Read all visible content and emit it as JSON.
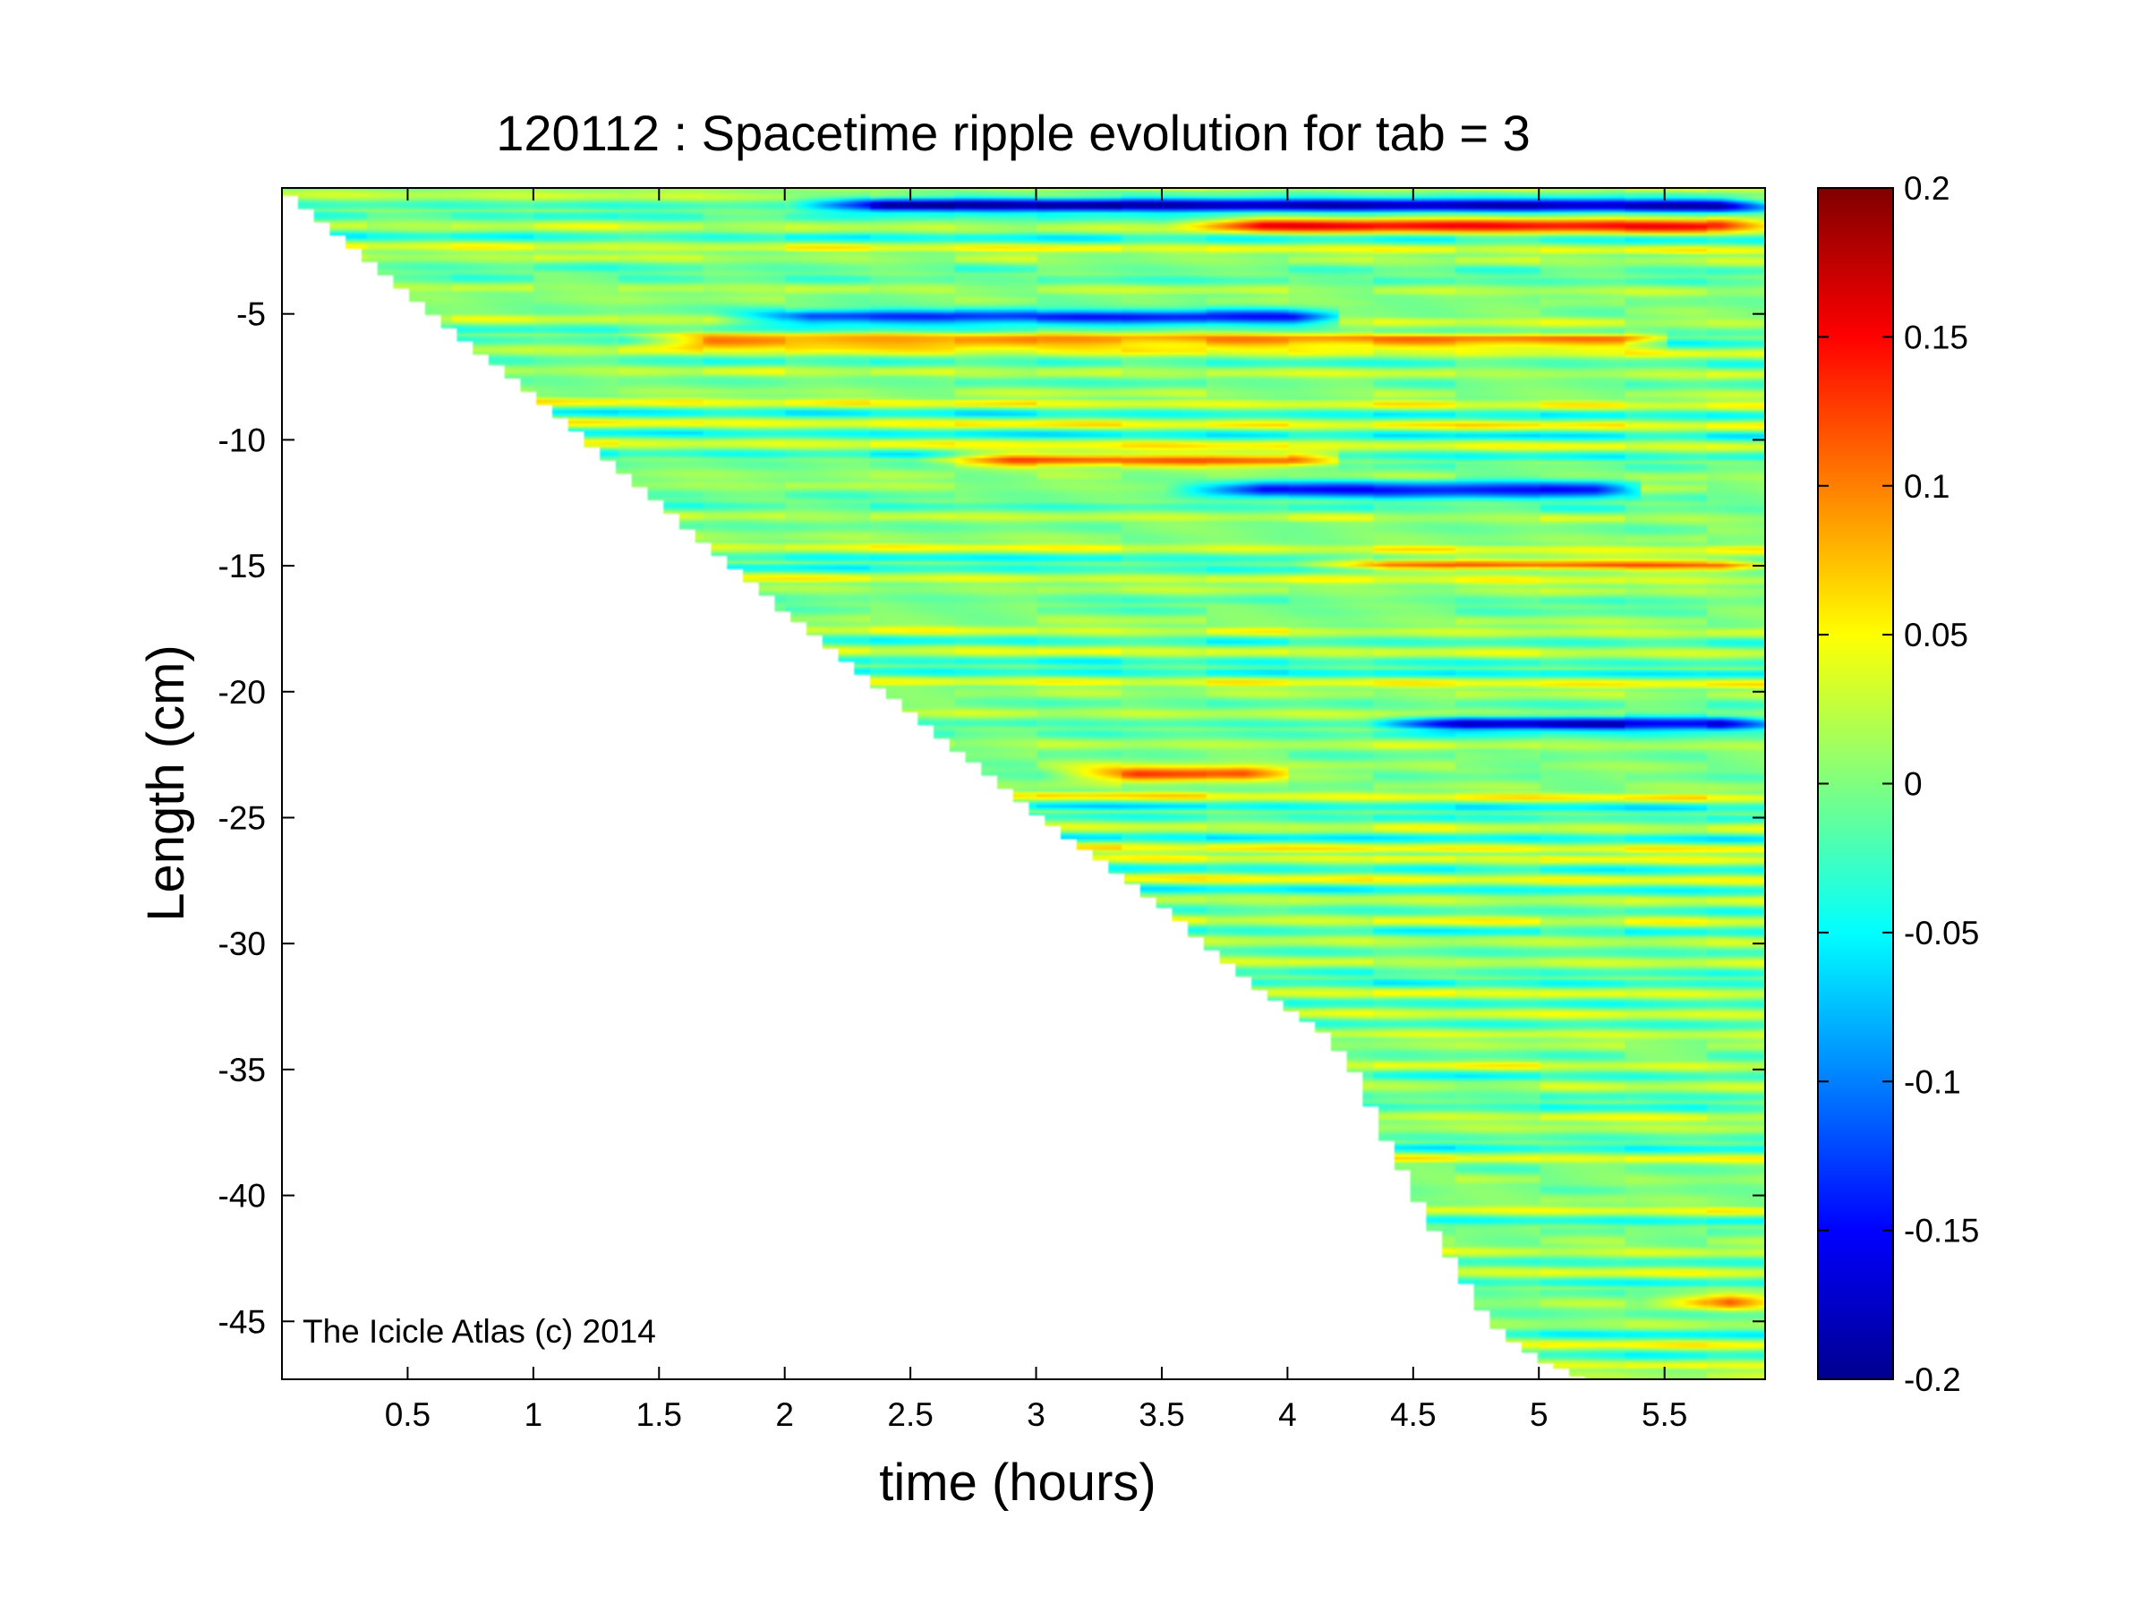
{
  "chart_data": {
    "type": "heatmap",
    "title": "120112 : Spacetime ripple evolution for tab = 3",
    "xlabel": "time (hours)",
    "ylabel": "Length (cm)",
    "xlim": [
      0.0,
      5.9
    ],
    "ylim": [
      -47.3,
      0.0
    ],
    "x_ticks": [
      0.5,
      1,
      1.5,
      2,
      2.5,
      3,
      3.5,
      4,
      4.5,
      5,
      5.5
    ],
    "x_tick_labels": [
      "0.5",
      "1",
      "1.5",
      "2",
      "2.5",
      "3",
      "3.5",
      "4",
      "4.5",
      "5",
      "5.5"
    ],
    "y_ticks": [
      -5,
      -10,
      -15,
      -20,
      -25,
      -30,
      -35,
      -40,
      -45
    ],
    "y_tick_labels": [
      "-5",
      "-10",
      "-15",
      "-20",
      "-25",
      "-30",
      "-35",
      "-40",
      "-45"
    ],
    "colorbar": {
      "colormap": "jet",
      "range": [
        -0.2,
        0.2
      ],
      "ticks": [
        0.2,
        0.15,
        0.1,
        0.05,
        0,
        -0.05,
        -0.1,
        -0.15,
        -0.2
      ],
      "tick_labels": [
        "0.2",
        "0.15",
        "0.1",
        "0.05",
        "0",
        "-0.05",
        "-0.1",
        "-0.15",
        "-0.2"
      ]
    },
    "front": {
      "time": [
        0.0,
        0.5,
        1.0,
        1.5,
        2.0,
        2.5,
        3.0,
        3.5,
        3.85,
        4.15,
        4.3,
        4.35,
        4.5,
        4.62,
        4.8,
        5.0,
        5.2
      ],
      "length": [
        0.0,
        -4.2,
        -8.2,
        -12.5,
        -16.8,
        -20.8,
        -24.8,
        -28.5,
        -31.5,
        -33.5,
        -35.5,
        -37.0,
        -39.8,
        -42.0,
        -45.0,
        -46.5,
        -47.3
      ]
    },
    "ripples": {
      "spacing_cm": 0.82,
      "drift_cm_per_hour": -0.03,
      "amplitude_range": [
        -0.2,
        0.2
      ],
      "strong_bands": [
        {
          "length": -0.6,
          "t_start": 2.0,
          "t_end": 5.9,
          "value": -0.17
        },
        {
          "length": -1.4,
          "t_start": 3.5,
          "t_end": 5.9,
          "value": 0.14
        },
        {
          "length": -5.1,
          "t_start": 1.7,
          "t_end": 4.2,
          "value": -0.15
        },
        {
          "length": -6.0,
          "t_start": 1.3,
          "t_end": 5.5,
          "value": 0.12
        },
        {
          "length": -10.7,
          "t_start": 2.5,
          "t_end": 4.2,
          "value": 0.13
        },
        {
          "length": -11.9,
          "t_start": 3.5,
          "t_end": 5.4,
          "value": -0.16
        },
        {
          "length": -14.9,
          "t_start": 4.0,
          "t_end": 5.9,
          "value": 0.12
        },
        {
          "length": -21.2,
          "t_start": 4.3,
          "t_end": 5.9,
          "value": -0.15
        },
        {
          "length": -23.2,
          "t_start": 3.0,
          "t_end": 4.0,
          "value": 0.12
        },
        {
          "length": -44.2,
          "t_start": 5.4,
          "t_end": 5.9,
          "value": 0.13
        }
      ]
    }
  },
  "watermark": "The Icicle Atlas (c) 2014"
}
